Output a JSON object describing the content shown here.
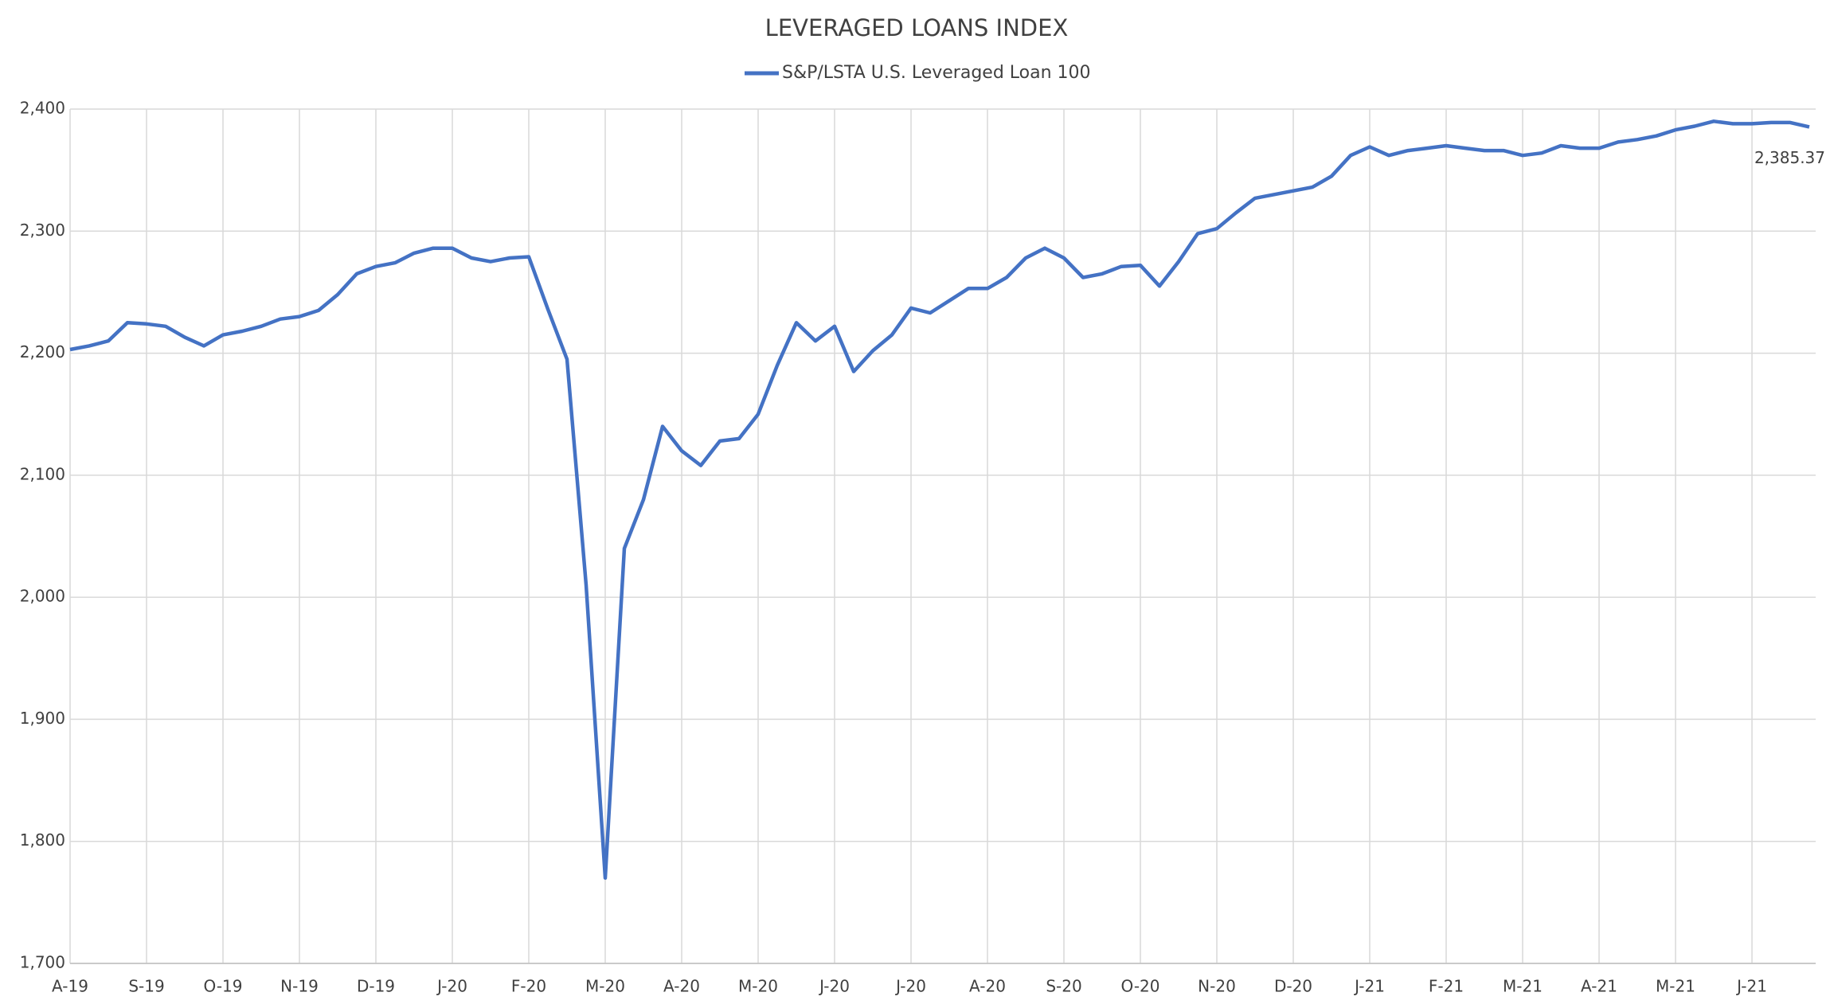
{
  "chart_data": {
    "type": "line",
    "title": "LEVERAGED LOANS INDEX",
    "categories": [
      "A-19",
      null,
      null,
      null,
      "S-19",
      null,
      null,
      null,
      "O-19",
      null,
      null,
      null,
      "N-19",
      null,
      null,
      null,
      "D-19",
      null,
      null,
      null,
      "J-20",
      null,
      null,
      null,
      "F-20",
      null,
      null,
      null,
      "M-20",
      null,
      null,
      null,
      "A-20",
      null,
      null,
      null,
      "M-20",
      null,
      null,
      null,
      "J-20",
      null,
      null,
      null,
      "J-20",
      null,
      null,
      null,
      "A-20",
      null,
      null,
      null,
      "S-20",
      null,
      null,
      null,
      "O-20",
      null,
      null,
      null,
      "N-20",
      null,
      null,
      null,
      "D-20",
      null,
      null,
      null,
      "J-21",
      null,
      null,
      null,
      "F-21",
      null,
      null,
      null,
      "M-21",
      null,
      null,
      null,
      "A-21",
      null,
      null,
      null,
      "M-21",
      null,
      null,
      null,
      "J-21",
      null,
      null,
      null
    ],
    "series": [
      {
        "name": "S&P/LSTA U.S. Leveraged Loan 100",
        "color": "#4472c4",
        "values": [
          2203,
          2206,
          2210,
          2225,
          2224,
          2222,
          2213,
          2206,
          2215,
          2218,
          2222,
          2228,
          2230,
          2235,
          2248,
          2265,
          2271,
          2274,
          2282,
          2286,
          2286,
          2278,
          2275,
          2278,
          2279,
          2236,
          2195,
          2010,
          1770,
          2040,
          2080,
          2140,
          2120,
          2108,
          2128,
          2130,
          2150,
          2190,
          2225,
          2210,
          2222,
          2185,
          2202,
          2215,
          2237,
          2233,
          2243,
          2253,
          2253,
          2262,
          2278,
          2286,
          2278,
          2262,
          2265,
          2271,
          2272,
          2255,
          2275,
          2298,
          2302,
          2315,
          2327,
          2330,
          2333,
          2336,
          2345,
          2362,
          2369,
          2362,
          2366,
          2368,
          2370,
          2368,
          2366,
          2366,
          2362,
          2364,
          2370,
          2368,
          2368,
          2373,
          2375,
          2378,
          2383,
          2386,
          2390,
          2388,
          2388,
          2389,
          2389,
          2385.37
        ],
        "value_labels": [
          null,
          null,
          null,
          null,
          null,
          null,
          null,
          null,
          null,
          null,
          null,
          null,
          null,
          null,
          null,
          null,
          null,
          null,
          null,
          null,
          null,
          null,
          null,
          null,
          null,
          null,
          null,
          null,
          null,
          null,
          null,
          null,
          null,
          null,
          null,
          null,
          null,
          null,
          null,
          null,
          null,
          null,
          null,
          null,
          null,
          null,
          null,
          null,
          null,
          null,
          null,
          null,
          null,
          null,
          null,
          null,
          null,
          null,
          null,
          null,
          null,
          null,
          null,
          null,
          null,
          null,
          null,
          null,
          null,
          null,
          null,
          null,
          null,
          null,
          null,
          null,
          null,
          null,
          null,
          null,
          null,
          null,
          null,
          null,
          null,
          null,
          null,
          null,
          null,
          null,
          null,
          "2,385.37"
        ]
      }
    ],
    "ylim": [
      1700,
      2400
    ],
    "yticks": [
      {
        "value": 1700,
        "label": "1,700"
      },
      {
        "value": 1800,
        "label": "1,800"
      },
      {
        "value": 1900,
        "label": "1,900"
      },
      {
        "value": 2000,
        "label": "2,000"
      },
      {
        "value": 2100,
        "label": "2,100"
      },
      {
        "value": 2200,
        "label": "2,200"
      },
      {
        "value": 2300,
        "label": "2,300"
      },
      {
        "value": 2400,
        "label": "2,400"
      }
    ],
    "grid": true,
    "legend": "top"
  }
}
